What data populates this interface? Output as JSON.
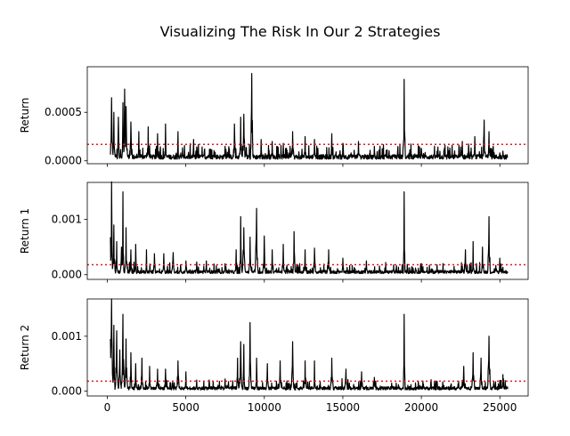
{
  "chart_data": {
    "type": "line",
    "title": "Visualizing The Risk In Our 2 Strategies",
    "x_ticks": [
      "0",
      "5000",
      "10000",
      "15000",
      "20000",
      "25000"
    ],
    "x_tick_values": [
      0,
      5000,
      10000,
      15000,
      20000,
      25000
    ],
    "xlim": [
      -1275,
      26800
    ],
    "x_extent": [
      200,
      25500
    ],
    "line_color": "#000000",
    "reference_line_color": "#e8171a",
    "panels": [
      {
        "ylabel": "Return",
        "ylim": [
          -3e-05,
          0.00097
        ],
        "y_ticks": [
          "0.0000",
          "0.0005"
        ],
        "y_tick_values": [
          0,
          0.0005
        ],
        "reference_line": 0.00017,
        "baseline": 4e-05,
        "peaks": [
          {
            "x": 270,
            "y": 0.00065
          },
          {
            "x": 420,
            "y": 0.0005
          },
          {
            "x": 700,
            "y": 0.00045
          },
          {
            "x": 1000,
            "y": 0.0006
          },
          {
            "x": 1100,
            "y": 0.00074
          },
          {
            "x": 1200,
            "y": 0.00056
          },
          {
            "x": 1500,
            "y": 0.0004
          },
          {
            "x": 2000,
            "y": 0.0003
          },
          {
            "x": 2600,
            "y": 0.00035
          },
          {
            "x": 3200,
            "y": 0.00028
          },
          {
            "x": 3700,
            "y": 0.00038
          },
          {
            "x": 4500,
            "y": 0.0003
          },
          {
            "x": 5500,
            "y": 0.00022
          },
          {
            "x": 6500,
            "y": 0.00012
          },
          {
            "x": 7500,
            "y": 0.00015
          },
          {
            "x": 8100,
            "y": 0.00038
          },
          {
            "x": 8500,
            "y": 0.00045
          },
          {
            "x": 8700,
            "y": 0.00048
          },
          {
            "x": 9200,
            "y": 0.0009
          },
          {
            "x": 9800,
            "y": 0.00022
          },
          {
            "x": 10500,
            "y": 0.0002
          },
          {
            "x": 11200,
            "y": 0.00018
          },
          {
            "x": 11800,
            "y": 0.0003
          },
          {
            "x": 12600,
            "y": 0.00025
          },
          {
            "x": 13200,
            "y": 0.00022
          },
          {
            "x": 14300,
            "y": 0.00028
          },
          {
            "x": 15000,
            "y": 0.00018
          },
          {
            "x": 16000,
            "y": 0.0002
          },
          {
            "x": 17000,
            "y": 0.00015
          },
          {
            "x": 18900,
            "y": 0.00084
          },
          {
            "x": 20000,
            "y": 0.00012
          },
          {
            "x": 21000,
            "y": 0.0001
          },
          {
            "x": 22600,
            "y": 0.0002
          },
          {
            "x": 23400,
            "y": 0.00025
          },
          {
            "x": 24000,
            "y": 0.00042
          },
          {
            "x": 24300,
            "y": 0.0003
          },
          {
            "x": 25200,
            "y": 0.0001
          }
        ]
      },
      {
        "ylabel": "Return 1",
        "ylim": [
          -8.5e-05,
          0.00167
        ],
        "y_ticks": [
          "0.000",
          "0.001"
        ],
        "y_tick_values": [
          0,
          0.001
        ],
        "reference_line": 0.00018,
        "baseline": 5e-05,
        "peaks": [
          {
            "x": 200,
            "y": 0.00068
          },
          {
            "x": 280,
            "y": 0.00168
          },
          {
            "x": 420,
            "y": 0.0009
          },
          {
            "x": 600,
            "y": 0.0006
          },
          {
            "x": 900,
            "y": 0.0005
          },
          {
            "x": 1000,
            "y": 0.0015
          },
          {
            "x": 1200,
            "y": 0.00085
          },
          {
            "x": 1500,
            "y": 0.00045
          },
          {
            "x": 1800,
            "y": 0.00055
          },
          {
            "x": 2500,
            "y": 0.00045
          },
          {
            "x": 3000,
            "y": 0.00038
          },
          {
            "x": 3600,
            "y": 0.00038
          },
          {
            "x": 4200,
            "y": 0.0004
          },
          {
            "x": 5000,
            "y": 0.00025
          },
          {
            "x": 5700,
            "y": 0.00023
          },
          {
            "x": 6300,
            "y": 0.00025
          },
          {
            "x": 7500,
            "y": 0.0002
          },
          {
            "x": 8200,
            "y": 0.00045
          },
          {
            "x": 8500,
            "y": 0.00105
          },
          {
            "x": 8700,
            "y": 0.00085
          },
          {
            "x": 9100,
            "y": 0.00068
          },
          {
            "x": 9500,
            "y": 0.0012
          },
          {
            "x": 10000,
            "y": 0.0007
          },
          {
            "x": 10500,
            "y": 0.00045
          },
          {
            "x": 11200,
            "y": 0.00055
          },
          {
            "x": 11900,
            "y": 0.00078
          },
          {
            "x": 12600,
            "y": 0.00045
          },
          {
            "x": 13200,
            "y": 0.00048
          },
          {
            "x": 14100,
            "y": 0.00045
          },
          {
            "x": 15000,
            "y": 0.0003
          },
          {
            "x": 16500,
            "y": 0.00025
          },
          {
            "x": 18900,
            "y": 0.0015
          },
          {
            "x": 20000,
            "y": 0.0002
          },
          {
            "x": 21000,
            "y": 0.00018
          },
          {
            "x": 22800,
            "y": 0.00045
          },
          {
            "x": 23300,
            "y": 0.0006
          },
          {
            "x": 23900,
            "y": 0.0005
          },
          {
            "x": 24300,
            "y": 0.00105
          },
          {
            "x": 25000,
            "y": 0.0003
          }
        ]
      },
      {
        "ylabel": "Return 2",
        "ylim": [
          -9e-05,
          0.00168
        ],
        "y_ticks": [
          "0.000",
          "0.001"
        ],
        "y_tick_values": [
          0,
          0.001
        ],
        "reference_line": 0.00018,
        "baseline": 5e-05,
        "peaks": [
          {
            "x": 200,
            "y": 0.00095
          },
          {
            "x": 270,
            "y": 0.00168
          },
          {
            "x": 420,
            "y": 0.0012
          },
          {
            "x": 600,
            "y": 0.0011
          },
          {
            "x": 800,
            "y": 0.00075
          },
          {
            "x": 1000,
            "y": 0.0014
          },
          {
            "x": 1200,
            "y": 0.00095
          },
          {
            "x": 1500,
            "y": 0.0007
          },
          {
            "x": 1800,
            "y": 0.0005
          },
          {
            "x": 2200,
            "y": 0.0006
          },
          {
            "x": 2700,
            "y": 0.00045
          },
          {
            "x": 3200,
            "y": 0.0004
          },
          {
            "x": 3700,
            "y": 0.0004
          },
          {
            "x": 4500,
            "y": 0.00055
          },
          {
            "x": 5000,
            "y": 0.00035
          },
          {
            "x": 5700,
            "y": 0.0002
          },
          {
            "x": 6500,
            "y": 0.00015
          },
          {
            "x": 7500,
            "y": 0.00022
          },
          {
            "x": 8300,
            "y": 0.0006
          },
          {
            "x": 8500,
            "y": 0.0009
          },
          {
            "x": 8700,
            "y": 0.00085
          },
          {
            "x": 9100,
            "y": 0.00125
          },
          {
            "x": 9500,
            "y": 0.0006
          },
          {
            "x": 10200,
            "y": 0.0005
          },
          {
            "x": 11000,
            "y": 0.00055
          },
          {
            "x": 11800,
            "y": 0.0009
          },
          {
            "x": 12600,
            "y": 0.00055
          },
          {
            "x": 13200,
            "y": 0.00055
          },
          {
            "x": 14300,
            "y": 0.0006
          },
          {
            "x": 15200,
            "y": 0.0004
          },
          {
            "x": 16200,
            "y": 0.00035
          },
          {
            "x": 17000,
            "y": 0.00025
          },
          {
            "x": 18900,
            "y": 0.0014
          },
          {
            "x": 19800,
            "y": 0.00018
          },
          {
            "x": 21000,
            "y": 0.00018
          },
          {
            "x": 22700,
            "y": 0.00045
          },
          {
            "x": 23300,
            "y": 0.0007
          },
          {
            "x": 23800,
            "y": 0.0006
          },
          {
            "x": 24300,
            "y": 0.001
          },
          {
            "x": 25200,
            "y": 0.0003
          }
        ]
      }
    ]
  }
}
